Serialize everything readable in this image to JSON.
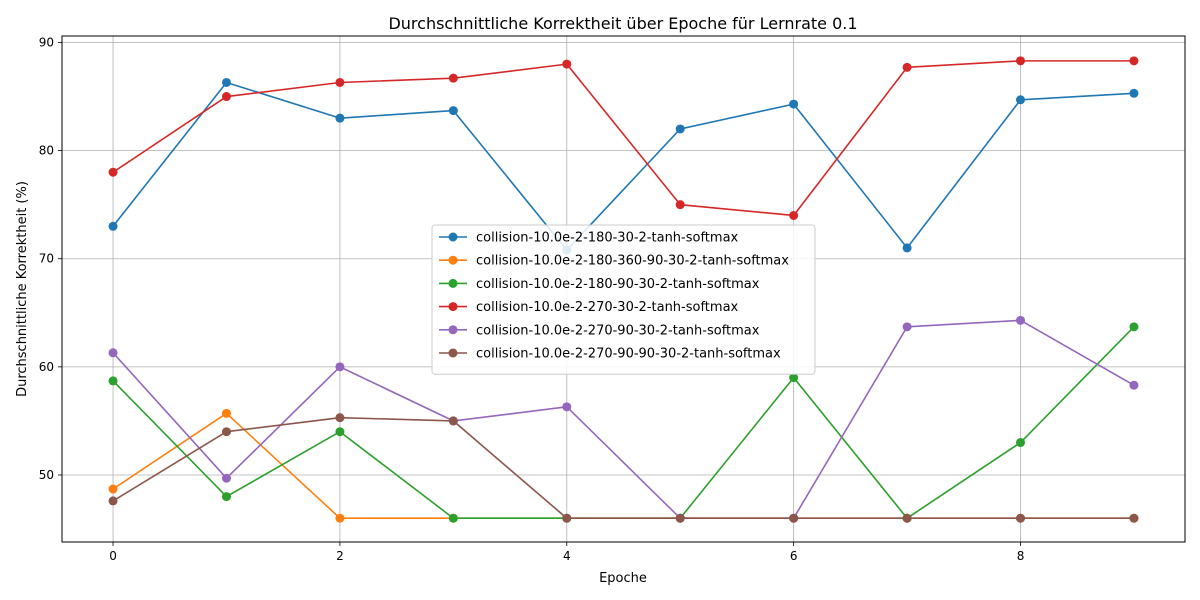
{
  "chart_data": {
    "type": "line",
    "title": "Durchschnittliche Korrektheit über Epoche für Lernrate 0.1",
    "xlabel": "Epoche",
    "ylabel": "Durchschnittliche Korrektheit (%)",
    "x": [
      0,
      1,
      2,
      3,
      4,
      5,
      6,
      7,
      8,
      9
    ],
    "xlim": [
      -0.45,
      9.45
    ],
    "ylim": [
      43.8,
      90.6
    ],
    "xticks": [
      0,
      2,
      4,
      6,
      8
    ],
    "yticks": [
      50,
      60,
      70,
      80,
      90
    ],
    "grid": true,
    "legend_position": "center",
    "series": [
      {
        "name": "collision-10.0e-2-180-30-2-tanh-softmax",
        "color": "#1f77b4",
        "values": [
          73.0,
          86.3,
          83.0,
          83.7,
          70.8,
          82.0,
          84.3,
          71.0,
          84.7,
          85.3
        ]
      },
      {
        "name": "collision-10.0e-2-180-360-90-30-2-tanh-softmax",
        "color": "#ff7f0e",
        "values": [
          48.7,
          55.7,
          46.0,
          46.0,
          46.0,
          46.0,
          46.0,
          46.0,
          46.0,
          46.0
        ]
      },
      {
        "name": "collision-10.0e-2-180-90-30-2-tanh-softmax",
        "color": "#2ca02c",
        "values": [
          58.7,
          48.0,
          54.0,
          46.0,
          46.0,
          46.0,
          59.0,
          46.0,
          53.0,
          63.7
        ]
      },
      {
        "name": "collision-10.0e-2-270-30-2-tanh-softmax",
        "color": "#d62728",
        "values": [
          78.0,
          85.0,
          86.3,
          86.7,
          88.0,
          75.0,
          74.0,
          87.7,
          88.3,
          88.3
        ]
      },
      {
        "name": "collision-10.0e-2-270-90-30-2-tanh-softmax",
        "color": "#9467bd",
        "values": [
          61.3,
          49.7,
          60.0,
          55.0,
          56.3,
          46.0,
          46.0,
          63.7,
          64.3,
          58.3
        ]
      },
      {
        "name": "collision-10.0e-2-270-90-90-30-2-tanh-softmax",
        "color": "#8c564b",
        "values": [
          47.6,
          54.0,
          55.3,
          55.0,
          46.0,
          46.0,
          46.0,
          46.0,
          46.0,
          46.0
        ]
      }
    ]
  }
}
